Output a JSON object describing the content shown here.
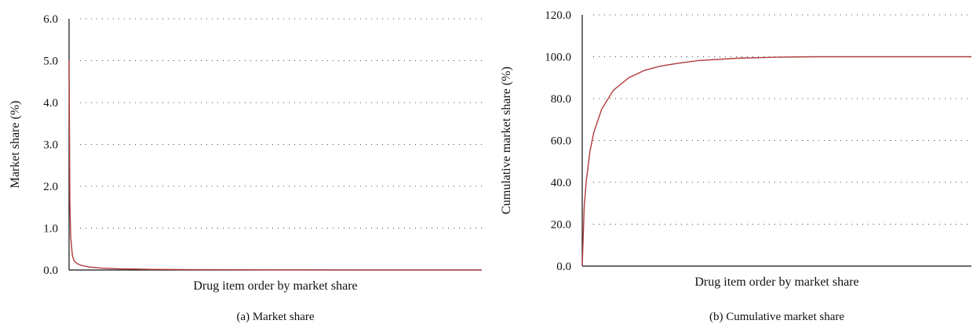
{
  "chart_data": [
    {
      "type": "line",
      "caption": "(a)  Market share",
      "xlabel": "Drug item order by market share",
      "ylabel": "Market share (%)",
      "ylim": [
        0,
        6
      ],
      "yticks": [
        "0.0",
        "1.0",
        "2.0",
        "3.0",
        "4.0",
        "5.0",
        "6.0"
      ],
      "grid": true,
      "color": "#b03a3a",
      "series": [
        {
          "x": [
            0,
            0.002,
            0.004,
            0.008,
            0.012,
            0.02,
            0.03,
            0.05,
            0.08,
            0.12,
            0.2,
            0.3,
            0.5,
            0.7,
            1.0
          ],
          "values": [
            5.0,
            1.6,
            0.8,
            0.35,
            0.22,
            0.15,
            0.11,
            0.07,
            0.045,
            0.03,
            0.015,
            0.008,
            0.004,
            0.002,
            0.001
          ]
        }
      ]
    },
    {
      "type": "line",
      "caption": "(b)  Cumulative market share",
      "xlabel": "Drug item order by market share",
      "ylabel": "Cumulative market share (%)",
      "ylim": [
        0,
        120
      ],
      "yticks": [
        "0.0",
        "20.0",
        "40.0",
        "60.0",
        "80.0",
        "100.0",
        "120.0"
      ],
      "grid": true,
      "color": "#b03a3a",
      "series": [
        {
          "x": [
            0,
            0.005,
            0.01,
            0.02,
            0.03,
            0.05,
            0.08,
            0.12,
            0.16,
            0.2,
            0.25,
            0.3,
            0.4,
            0.5,
            0.6,
            0.8,
            1.0
          ],
          "values": [
            0,
            28,
            40,
            55,
            64,
            75,
            84,
            90,
            93.5,
            95.5,
            97,
            98.2,
            99.3,
            99.8,
            100,
            100,
            100
          ]
        }
      ]
    }
  ]
}
